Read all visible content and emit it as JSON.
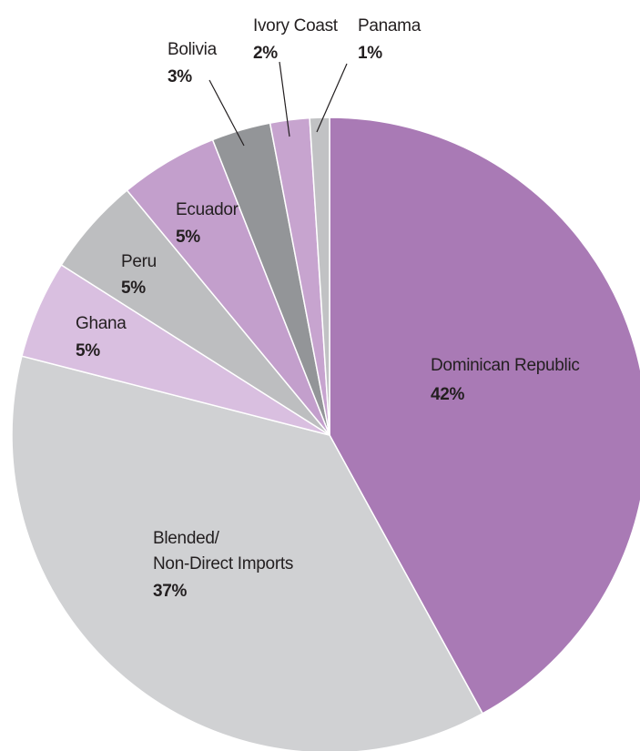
{
  "chart_data": {
    "type": "pie",
    "categories": [
      "Dominican Republic",
      "Blended/\nNon-Direct Imports",
      "Ghana",
      "Peru",
      "Ecuador",
      "Bolivia",
      "Ivory Coast",
      "Panama"
    ],
    "values": [
      42,
      37,
      5,
      5,
      5,
      3,
      2,
      1
    ],
    "value_labels": [
      "42%",
      "37%",
      "5%",
      "5%",
      "5%",
      "3%",
      "2%",
      "1%"
    ],
    "colors": [
      "#a97ab5",
      "#d0d1d3",
      "#d9bfe0",
      "#bdbec0",
      "#c39fcc",
      "#939598",
      "#c7a4cf",
      "#c1c2c4"
    ]
  }
}
